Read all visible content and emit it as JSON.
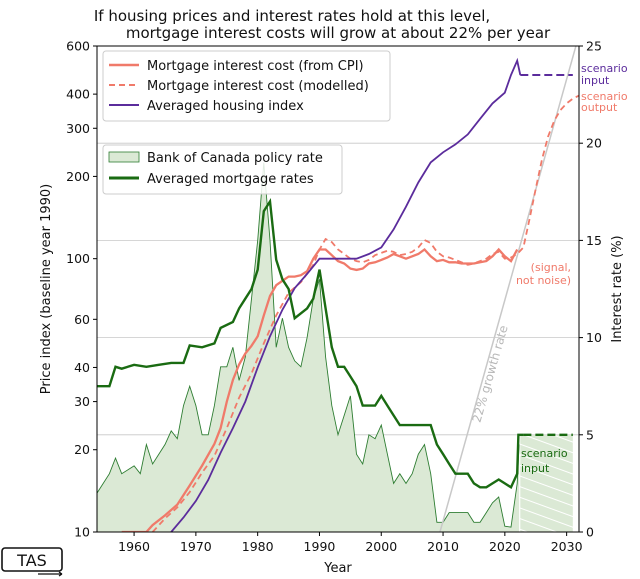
{
  "chart_data": {
    "type": "line",
    "title_lines": [
      "If housing prices and interest rates hold at this level,",
      "mortgage interest costs will grow at about 22% per year"
    ],
    "xlabel": "Year",
    "ylabel_left": "Price index (baseline year 1990)",
    "ylabel_right": "Interest rate (%)",
    "xlim": [
      1954,
      2032
    ],
    "ylim_left": [
      10,
      600
    ],
    "left_scale": "log",
    "ylim_right": [
      0,
      25
    ],
    "x_ticks": [
      1960,
      1970,
      1980,
      1990,
      2000,
      2010,
      2020,
      2030
    ],
    "y_ticks_left": [
      10,
      20,
      30,
      40,
      60,
      100,
      200,
      300,
      400,
      600
    ],
    "y_ticks_right": [
      0,
      5,
      10,
      15,
      20,
      25
    ],
    "grid": "horizontal",
    "legend_placement": "top-left",
    "legend_top": [
      {
        "label": "Mortgage interest cost (from CPI)",
        "color": "#f07a6a",
        "style": "solid"
      },
      {
        "label": "Mortgage interest cost (modelled)",
        "color": "#f07a6a",
        "style": "dashed"
      },
      {
        "label": "Averaged housing index",
        "color": "#5b2c9c",
        "style": "solid"
      }
    ],
    "legend_mid": [
      {
        "label": "Bank of Canada policy rate",
        "color": "#2e7d32",
        "style": "fill"
      },
      {
        "label": "Averaged mortgage rates",
        "color": "#1a6b12",
        "style": "thick"
      }
    ],
    "annotations": {
      "scenario_input_purple": [
        "scenario",
        "input"
      ],
      "scenario_output": [
        "scenario",
        "output"
      ],
      "signal_note": [
        "(signal,",
        "not noise)"
      ],
      "growth_rate": "22% growth rate",
      "scenario_input_green": [
        "scenario",
        "input"
      ]
    },
    "series": [
      {
        "name": "Mortgage interest cost (from CPI)",
        "axis": "left",
        "points": [
          [
            1958,
            10
          ],
          [
            1962,
            10
          ],
          [
            1963,
            10.6
          ],
          [
            1965,
            11.5
          ],
          [
            1967,
            12.6
          ],
          [
            1969,
            14.8
          ],
          [
            1971,
            17.5
          ],
          [
            1973,
            21
          ],
          [
            1974,
            24
          ],
          [
            1975,
            30
          ],
          [
            1976,
            36
          ],
          [
            1977,
            41
          ],
          [
            1978,
            45
          ],
          [
            1979,
            48
          ],
          [
            1980,
            52
          ],
          [
            1981,
            62
          ],
          [
            1982,
            73
          ],
          [
            1983,
            80
          ],
          [
            1984,
            83
          ],
          [
            1985,
            86
          ],
          [
            1986,
            86
          ],
          [
            1987,
            87
          ],
          [
            1988,
            90
          ],
          [
            1989,
            100
          ],
          [
            1990,
            108
          ],
          [
            1991,
            108
          ],
          [
            1992,
            103
          ],
          [
            1993,
            98
          ],
          [
            1994,
            96
          ],
          [
            1995,
            92
          ],
          [
            1996,
            91
          ],
          [
            1997,
            92
          ],
          [
            1998,
            96
          ],
          [
            1999,
            97
          ],
          [
            2000,
            99
          ],
          [
            2001,
            101
          ],
          [
            2002,
            104
          ],
          [
            2003,
            102
          ],
          [
            2004,
            100
          ],
          [
            2005,
            102
          ],
          [
            2006,
            104
          ],
          [
            2007,
            108
          ],
          [
            2008,
            102
          ],
          [
            2009,
            98
          ],
          [
            2010,
            99
          ],
          [
            2011,
            97
          ],
          [
            2012,
            97
          ],
          [
            2013,
            96
          ],
          [
            2014,
            96
          ],
          [
            2015,
            96
          ],
          [
            2016,
            97
          ],
          [
            2017,
            98
          ],
          [
            2018,
            102
          ],
          [
            2019,
            108
          ],
          [
            2020,
            102
          ],
          [
            2021,
            98
          ],
          [
            2022,
            108
          ]
        ]
      },
      {
        "name": "Mortgage interest cost (modelled)",
        "axis": "left",
        "points": [
          [
            1963,
            10
          ],
          [
            1965,
            11.2
          ],
          [
            1967,
            12.3
          ],
          [
            1969,
            14
          ],
          [
            1971,
            16.5
          ],
          [
            1973,
            19
          ],
          [
            1975,
            24
          ],
          [
            1977,
            31
          ],
          [
            1979,
            38
          ],
          [
            1981,
            49
          ],
          [
            1983,
            62
          ],
          [
            1985,
            75
          ],
          [
            1987,
            82
          ],
          [
            1989,
            95
          ],
          [
            1990,
            108
          ],
          [
            1991,
            118
          ],
          [
            1992,
            115
          ],
          [
            1993,
            108
          ],
          [
            1994,
            104
          ],
          [
            1995,
            100
          ],
          [
            1996,
            98
          ],
          [
            1997,
            97
          ],
          [
            1998,
            99
          ],
          [
            1999,
            103
          ],
          [
            2000,
            105
          ],
          [
            2001,
            107
          ],
          [
            2002,
            106
          ],
          [
            2003,
            103
          ],
          [
            2004,
            104
          ],
          [
            2005,
            106
          ],
          [
            2006,
            110
          ],
          [
            2007,
            117
          ],
          [
            2008,
            114
          ],
          [
            2009,
            106
          ],
          [
            2010,
            102
          ],
          [
            2011,
            101
          ],
          [
            2012,
            99
          ],
          [
            2013,
            97
          ],
          [
            2014,
            95
          ],
          [
            2015,
            96
          ],
          [
            2016,
            98
          ],
          [
            2017,
            100
          ],
          [
            2018,
            104
          ],
          [
            2019,
            106
          ],
          [
            2020,
            100
          ],
          [
            2021,
            101
          ],
          [
            2022,
            104
          ],
          [
            2023,
            110
          ],
          [
            2024,
            140
          ],
          [
            2025,
            180
          ],
          [
            2026,
            230
          ],
          [
            2027,
            280
          ],
          [
            2028,
            320
          ],
          [
            2029,
            350
          ],
          [
            2030,
            370
          ],
          [
            2031,
            385
          ],
          [
            2032,
            395
          ]
        ]
      },
      {
        "name": "Averaged housing index",
        "axis": "left",
        "points": [
          [
            1966,
            10
          ],
          [
            1968,
            11.3
          ],
          [
            1970,
            13
          ],
          [
            1972,
            15.5
          ],
          [
            1974,
            19.5
          ],
          [
            1976,
            24
          ],
          [
            1978,
            30
          ],
          [
            1980,
            40
          ],
          [
            1982,
            52
          ],
          [
            1984,
            65
          ],
          [
            1986,
            78
          ],
          [
            1988,
            88
          ],
          [
            1990,
            100
          ],
          [
            1992,
            100
          ],
          [
            1994,
            100
          ],
          [
            1996,
            100
          ],
          [
            1998,
            104
          ],
          [
            2000,
            110
          ],
          [
            2002,
            128
          ],
          [
            2004,
            155
          ],
          [
            2006,
            190
          ],
          [
            2008,
            225
          ],
          [
            2010,
            245
          ],
          [
            2012,
            262
          ],
          [
            2014,
            285
          ],
          [
            2016,
            325
          ],
          [
            2018,
            370
          ],
          [
            2020,
            405
          ],
          [
            2021,
            470
          ],
          [
            2022,
            530
          ],
          [
            2022.5,
            470
          ]
        ]
      },
      {
        "name": "Averaged mortgage rates",
        "axis": "right",
        "points": [
          [
            1954,
            7.5
          ],
          [
            1956,
            7.5
          ],
          [
            1957,
            8.5
          ],
          [
            1958,
            8.4
          ],
          [
            1960,
            8.6
          ],
          [
            1962,
            8.5
          ],
          [
            1964,
            8.6
          ],
          [
            1966,
            8.7
          ],
          [
            1968,
            8.7
          ],
          [
            1969,
            9.6
          ],
          [
            1971,
            9.5
          ],
          [
            1973,
            9.7
          ],
          [
            1974,
            10.5
          ],
          [
            1976,
            10.8
          ],
          [
            1977,
            11.5
          ],
          [
            1978,
            12
          ],
          [
            1979,
            12.5
          ],
          [
            1980,
            13.5
          ],
          [
            1981,
            16.5
          ],
          [
            1982,
            17
          ],
          [
            1983,
            14
          ],
          [
            1984,
            13
          ],
          [
            1985,
            12.5
          ],
          [
            1986,
            11
          ],
          [
            1988,
            11.5
          ],
          [
            1989,
            12
          ],
          [
            1990,
            13.5
          ],
          [
            1991,
            11.5
          ],
          [
            1992,
            9.5
          ],
          [
            1993,
            8.5
          ],
          [
            1994,
            8.5
          ],
          [
            1995,
            8
          ],
          [
            1996,
            7.5
          ],
          [
            1997,
            6.5
          ],
          [
            1998,
            6.5
          ],
          [
            1999,
            6.5
          ],
          [
            2000,
            7
          ],
          [
            2001,
            6.5
          ],
          [
            2002,
            6
          ],
          [
            2003,
            5.5
          ],
          [
            2004,
            5.5
          ],
          [
            2005,
            5.5
          ],
          [
            2006,
            5.5
          ],
          [
            2007,
            5.5
          ],
          [
            2008,
            5.5
          ],
          [
            2009,
            4.5
          ],
          [
            2010,
            4
          ],
          [
            2011,
            3.5
          ],
          [
            2012,
            3
          ],
          [
            2013,
            3
          ],
          [
            2014,
            3
          ],
          [
            2015,
            2.5
          ],
          [
            2016,
            2.3
          ],
          [
            2017,
            2.3
          ],
          [
            2018,
            2.5
          ],
          [
            2019,
            2.7
          ],
          [
            2020,
            2.5
          ],
          [
            2021,
            2.3
          ],
          [
            2022,
            3
          ],
          [
            2022.2,
            5
          ],
          [
            2023,
            5
          ]
        ]
      },
      {
        "name": "Bank of Canada policy rate",
        "axis": "right",
        "points": [
          [
            1954,
            2
          ],
          [
            1956,
            3
          ],
          [
            1957,
            3.8
          ],
          [
            1958,
            3
          ],
          [
            1960,
            3.4
          ],
          [
            1961,
            3
          ],
          [
            1962,
            4.5
          ],
          [
            1963,
            3.5
          ],
          [
            1965,
            4.5
          ],
          [
            1966,
            5.2
          ],
          [
            1967,
            4.8
          ],
          [
            1968,
            6.5
          ],
          [
            1969,
            7.5
          ],
          [
            1970,
            6.5
          ],
          [
            1971,
            5
          ],
          [
            1972,
            5
          ],
          [
            1973,
            6.5
          ],
          [
            1974,
            8.5
          ],
          [
            1975,
            8.5
          ],
          [
            1976,
            9.5
          ],
          [
            1977,
            7.8
          ],
          [
            1978,
            9
          ],
          [
            1979,
            12
          ],
          [
            1980,
            15
          ],
          [
            1981,
            19
          ],
          [
            1982,
            15
          ],
          [
            1983,
            9.5
          ],
          [
            1984,
            11
          ],
          [
            1985,
            9.5
          ],
          [
            1986,
            8.8
          ],
          [
            1987,
            8.5
          ],
          [
            1988,
            10
          ],
          [
            1989,
            12
          ],
          [
            1990,
            13
          ],
          [
            1991,
            9
          ],
          [
            1992,
            6.5
          ],
          [
            1993,
            5
          ],
          [
            1994,
            6
          ],
          [
            1995,
            7
          ],
          [
            1996,
            4
          ],
          [
            1997,
            3.5
          ],
          [
            1998,
            5
          ],
          [
            1999,
            4.8
          ],
          [
            2000,
            5.5
          ],
          [
            2001,
            4
          ],
          [
            2002,
            2.5
          ],
          [
            2003,
            3
          ],
          [
            2004,
            2.5
          ],
          [
            2005,
            3
          ],
          [
            2006,
            4
          ],
          [
            2007,
            4.5
          ],
          [
            2008,
            3
          ],
          [
            2009,
            0.5
          ],
          [
            2010,
            0.5
          ],
          [
            2011,
            1
          ],
          [
            2012,
            1
          ],
          [
            2013,
            1
          ],
          [
            2014,
            1
          ],
          [
            2015,
            0.5
          ],
          [
            2016,
            0.5
          ],
          [
            2017,
            1
          ],
          [
            2018,
            1.5
          ],
          [
            2019,
            1.8
          ],
          [
            2020,
            0.3
          ],
          [
            2021,
            0.25
          ],
          [
            2022,
            2.5
          ],
          [
            2022.3,
            4.5
          ]
        ]
      }
    ],
    "scenario_purple_level": 470,
    "scenario_green_level": 5,
    "scenario_xrange": [
      2022.5,
      2031
    ],
    "growth_line": [
      [
        2009.5,
        10
      ],
      [
        2031.5,
        600
      ]
    ]
  },
  "footer": {
    "logo_text": "TAS"
  },
  "colors": {
    "cpi": "#f07a6a",
    "housing": "#5b2c9c",
    "policy_fill": "#dbe9d5",
    "policy_line": "#2e7d32",
    "mortgage": "#1a6b12",
    "growth": "#c8c8c8",
    "grid": "#c8c8c8"
  }
}
